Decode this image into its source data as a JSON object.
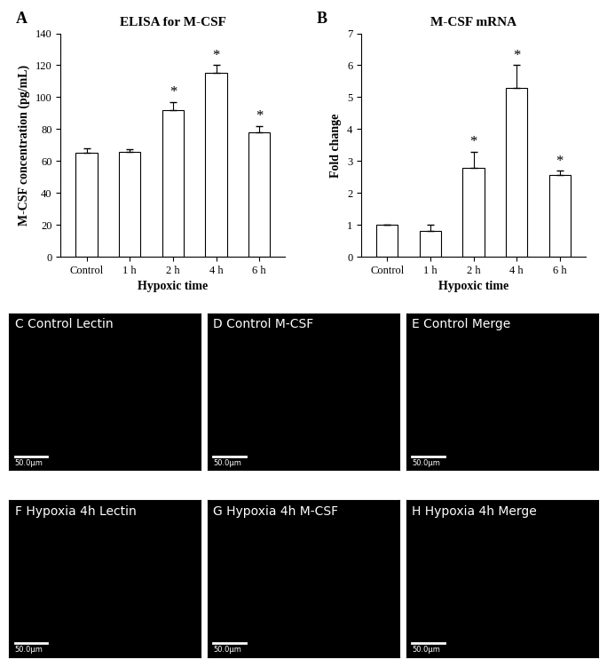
{
  "chart_data": [
    {
      "type": "bar",
      "panel": "A",
      "title": "ELISA for M-CSF",
      "x_label": "Hypoxic time",
      "y_label": "M-CSF concentration (pg/mL)",
      "categories": [
        "Control",
        "1 h",
        "2 h",
        "4 h",
        "6 h"
      ],
      "values": [
        65,
        65.5,
        92,
        115,
        78
      ],
      "errors": [
        3,
        2,
        5,
        5,
        4
      ],
      "annotations": [
        {
          "category": "2 h",
          "text": "*"
        },
        {
          "category": "4 h",
          "text": "*"
        },
        {
          "category": "6 h",
          "text": "*"
        }
      ],
      "color": "#ffffff",
      "ylim": [
        0,
        140
      ],
      "yticks": [
        0,
        20,
        40,
        60,
        80,
        100,
        120,
        140
      ],
      "grid": false
    },
    {
      "type": "bar",
      "panel": "B",
      "title": "M-CSF mRNA",
      "x_label": "Hypoxic time",
      "y_label": "Fold change",
      "categories": [
        "Control",
        "1 h",
        "2 h",
        "4 h",
        "6 h"
      ],
      "values": [
        1,
        0.8,
        2.8,
        5.3,
        2.55
      ],
      "errors": [
        0,
        0.2,
        0.5,
        0.7,
        0.15
      ],
      "annotations": [
        {
          "category": "2 h",
          "text": "*"
        },
        {
          "category": "4 h",
          "text": "*"
        },
        {
          "category": "6 h",
          "text": "*"
        }
      ],
      "color": "#ffffff",
      "ylim": [
        0,
        7
      ],
      "yticks": [
        0,
        1,
        2,
        3,
        4,
        5,
        6,
        7
      ],
      "grid": false
    }
  ],
  "image_panels": [
    {
      "label": "C Control Lectin",
      "scale_bar": "50.0μm"
    },
    {
      "label": "D Control M-CSF",
      "scale_bar": "50.0μm"
    },
    {
      "label": "E Control Merge",
      "scale_bar": "50.0μm"
    },
    {
      "label": "F Hypoxia 4h Lectin",
      "scale_bar": "50.0μm"
    },
    {
      "label": "G Hypoxia 4h M-CSF",
      "scale_bar": "50.0μm"
    },
    {
      "label": "H Hypoxia 4h Merge",
      "scale_bar": "50.0μm"
    }
  ]
}
